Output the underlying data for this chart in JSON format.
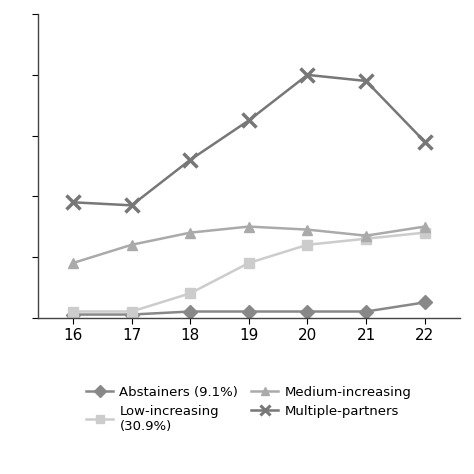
{
  "x": [
    16,
    17,
    18,
    19,
    20,
    21,
    22
  ],
  "abstainers": [
    0.01,
    0.01,
    0.02,
    0.02,
    0.02,
    0.02,
    0.05
  ],
  "low_increasing": [
    0.02,
    0.02,
    0.08,
    0.18,
    0.24,
    0.26,
    0.28
  ],
  "medium_increasing": [
    0.18,
    0.24,
    0.28,
    0.3,
    0.29,
    0.27,
    0.3
  ],
  "multiple_partners": [
    0.38,
    0.37,
    0.52,
    0.65,
    0.8,
    0.78,
    0.58
  ],
  "abstainers_color": "#888888",
  "low_increasing_color": "#cccccc",
  "medium_increasing_color": "#aaaaaa",
  "multiple_partners_color": "#777777",
  "legend_labels": [
    "Abstainers (9.1%)",
    "Low-increasing\n(30.9%)",
    "Medium-increasing",
    "Multiple-partners"
  ],
  "xlim": [
    15.4,
    22.6
  ],
  "ylim": [
    0,
    1.0
  ],
  "xticks": [
    16,
    17,
    18,
    19,
    20,
    21,
    22
  ],
  "yticks": [
    0.0,
    0.2,
    0.4,
    0.6,
    0.8,
    1.0
  ],
  "background_color": "#ffffff",
  "line_width": 1.8
}
